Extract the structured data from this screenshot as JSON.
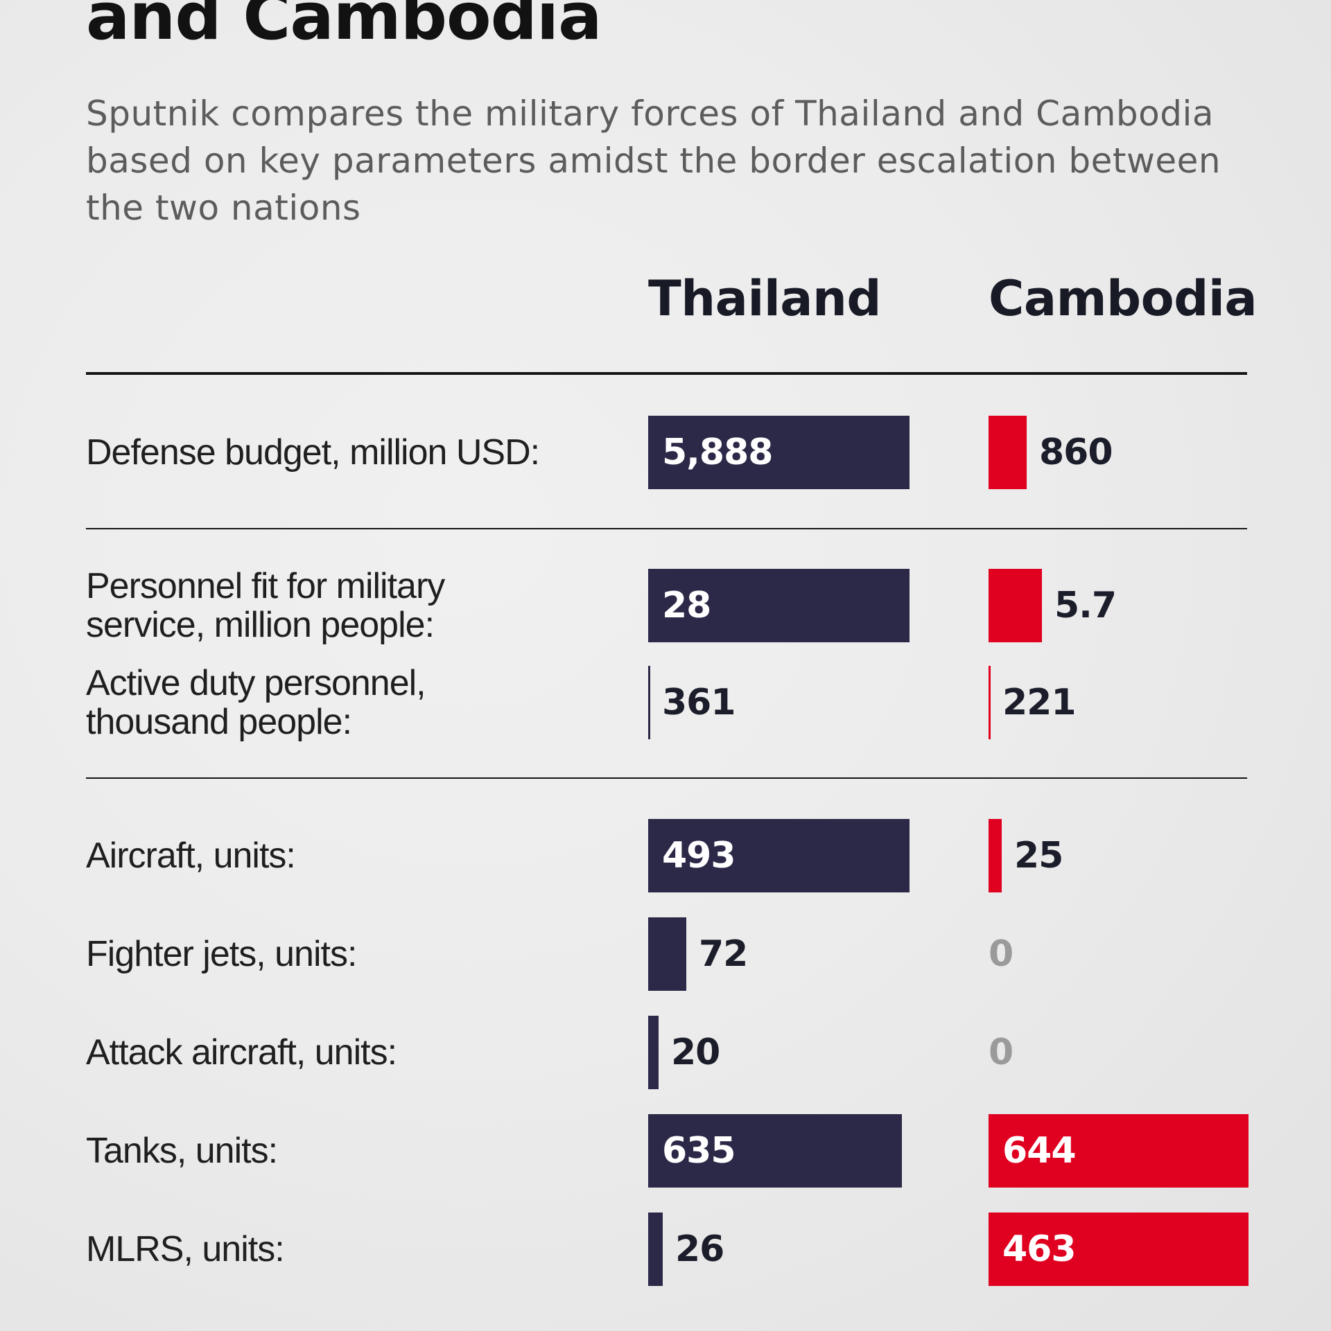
{
  "header": {
    "title": "and Cambodia",
    "subtitle": "Sputnik compares the military forces of Thailand and Cambodia based on key parameters amidst the border escalation between the two nations"
  },
  "columns": {
    "thailand": "Thailand",
    "cambodia": "Cambodia"
  },
  "colors": {
    "thailand_bar": "#2c2948",
    "cambodia_bar": "#e00020"
  },
  "chart_data": {
    "type": "bar",
    "orientation": "horizontal",
    "title": "and Cambodia",
    "subtitle": "Sputnik compares the military forces of Thailand and Cambodia based on key parameters amidst the border escalation between the two nations",
    "series_labels": [
      "Thailand",
      "Cambodia"
    ],
    "rows": [
      {
        "label_lines": [
          "Defense budget, million USD:"
        ],
        "thailand": {
          "value": 5888,
          "text": "5,888",
          "fill": 1.0,
          "inside": true
        },
        "cambodia": {
          "value": 860,
          "text": "860",
          "fill": 0.146,
          "inside": false
        }
      },
      {
        "label_lines": [
          "Personnel fit for military",
          "service, million people:"
        ],
        "thailand": {
          "value": 28,
          "text": "28",
          "fill": 1.0,
          "inside": true
        },
        "cambodia": {
          "value": 5.7,
          "text": "5.7",
          "fill": 0.204,
          "inside": false
        }
      },
      {
        "label_lines": [
          "Active duty personnel,",
          "thousand people:"
        ],
        "thailand": {
          "value": 361,
          "text": "361",
          "fill": 0.0,
          "inside": false
        },
        "cambodia": {
          "value": 221,
          "text": "221",
          "fill": 0.0,
          "inside": false
        }
      },
      {
        "label_lines": [
          "Aircraft, units:"
        ],
        "thailand": {
          "value": 493,
          "text": "493",
          "fill": 1.0,
          "inside": true
        },
        "cambodia": {
          "value": 25,
          "text": "25",
          "fill": 0.051,
          "inside": false
        }
      },
      {
        "label_lines": [
          "Fighter jets, units:"
        ],
        "thailand": {
          "value": 72,
          "text": "72",
          "fill": 0.146,
          "inside": false
        },
        "cambodia": {
          "value": 0,
          "text": "0",
          "fill": 0.0,
          "inside": false
        }
      },
      {
        "label_lines": [
          "Attack aircraft, units:"
        ],
        "thailand": {
          "value": 20,
          "text": "20",
          "fill": 0.041,
          "inside": false
        },
        "cambodia": {
          "value": 0,
          "text": "0",
          "fill": 0.0,
          "inside": false
        }
      },
      {
        "label_lines": [
          "Tanks, units:"
        ],
        "thailand": {
          "value": 635,
          "text": "635",
          "fill": 0.97,
          "inside": true
        },
        "cambodia": {
          "value": 644,
          "text": "644",
          "fill": 1.0,
          "inside": true
        }
      },
      {
        "label_lines": [
          "MLRS, units:"
        ],
        "thailand": {
          "value": 26,
          "text": "26",
          "fill": 0.056,
          "inside": false
        },
        "cambodia": {
          "value": 463,
          "text": "463",
          "fill": 1.0,
          "inside": true
        }
      }
    ]
  }
}
